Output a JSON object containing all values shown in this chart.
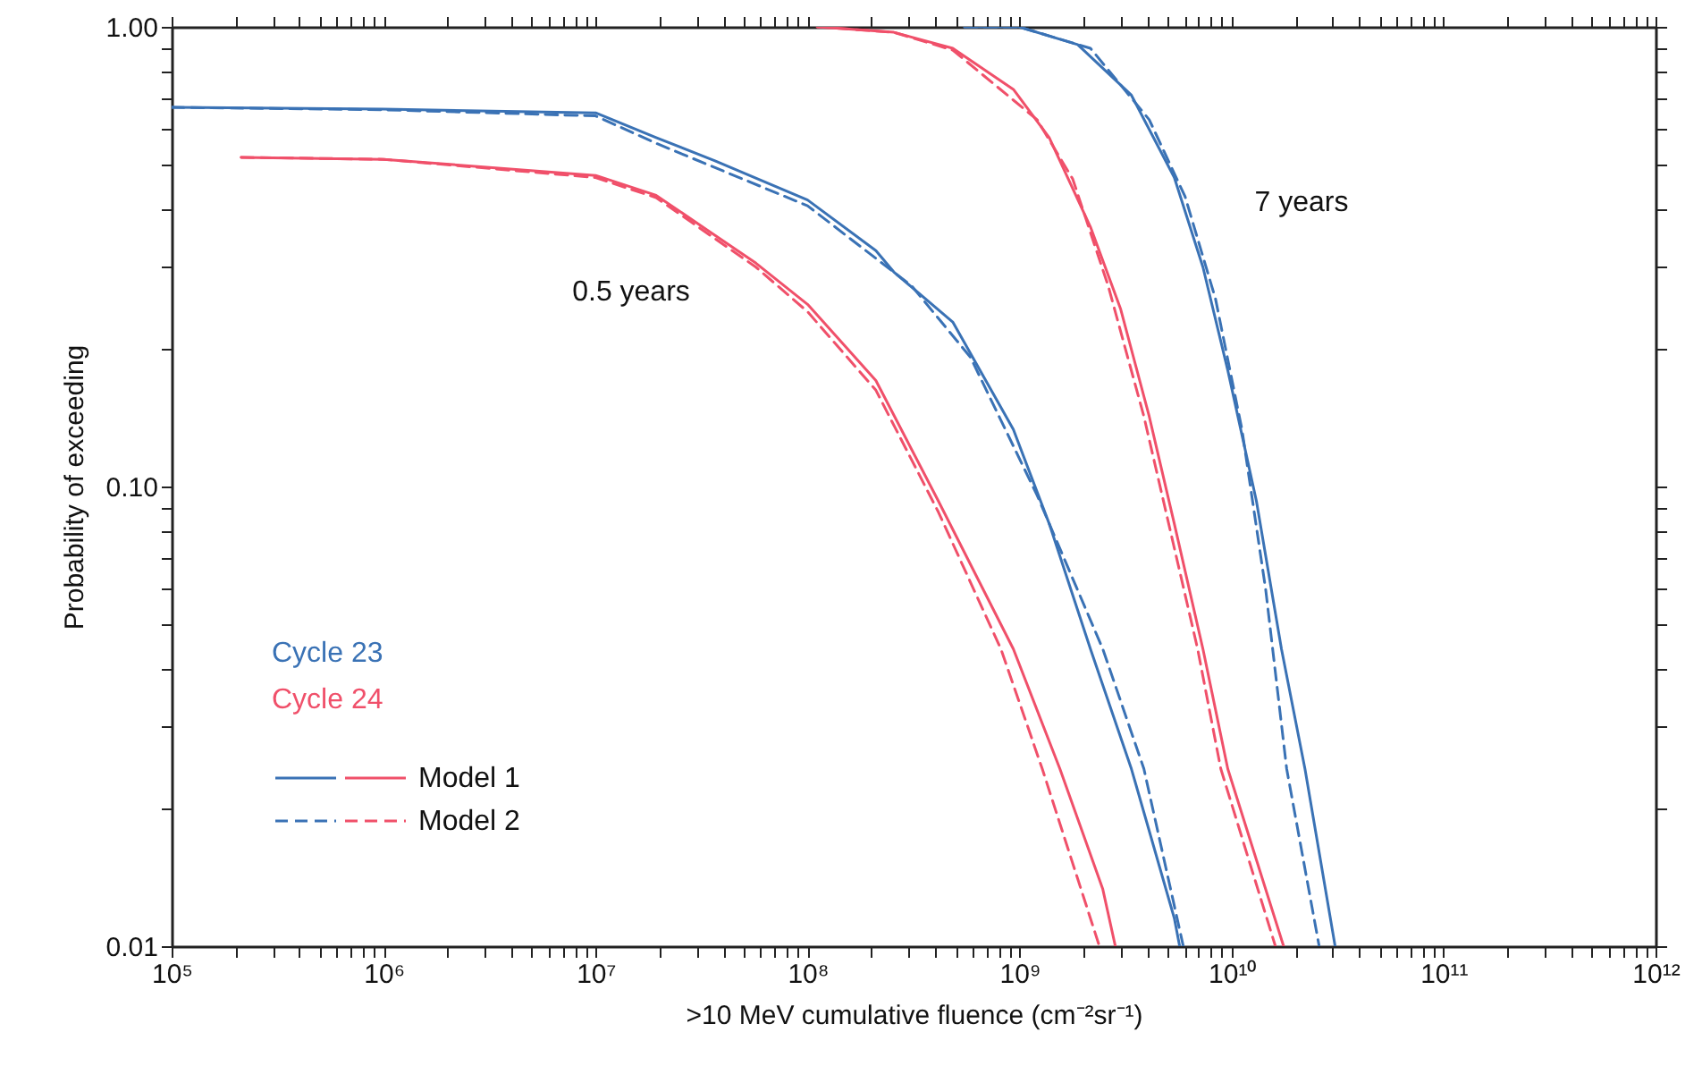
{
  "chart_data": {
    "type": "line",
    "xlabel": ">10 MeV cumulative fluence (cm⁻²sr⁻¹)",
    "ylabel": "Probability of exceeding",
    "xlim": [
      100000,
      1000000000000
    ],
    "ylim": [
      0.01,
      1
    ],
    "log": "xy",
    "grid": false,
    "xticks": [
      {
        "value": 100000,
        "label": "10⁵"
      },
      {
        "value": 200000,
        "label": null
      },
      {
        "value": 300000,
        "label": null
      },
      {
        "value": 400000,
        "label": null
      },
      {
        "value": 500000,
        "label": null
      },
      {
        "value": 600000,
        "label": null
      },
      {
        "value": 700000,
        "label": null
      },
      {
        "value": 800000,
        "label": null
      },
      {
        "value": 900000,
        "label": null
      },
      {
        "value": 1000000,
        "label": "10⁶"
      },
      {
        "value": 2000000,
        "label": null
      },
      {
        "value": 3000000,
        "label": null
      },
      {
        "value": 4000000,
        "label": null
      },
      {
        "value": 5000000,
        "label": null
      },
      {
        "value": 6000000,
        "label": null
      },
      {
        "value": 7000000,
        "label": null
      },
      {
        "value": 8000000,
        "label": null
      },
      {
        "value": 9000000,
        "label": null
      },
      {
        "value": 10000000,
        "label": "10⁷"
      },
      {
        "value": 20000000,
        "label": null
      },
      {
        "value": 30000000,
        "label": null
      },
      {
        "value": 40000000,
        "label": null
      },
      {
        "value": 50000000,
        "label": null
      },
      {
        "value": 60000000,
        "label": null
      },
      {
        "value": 70000000,
        "label": null
      },
      {
        "value": 80000000,
        "label": null
      },
      {
        "value": 90000000,
        "label": null
      },
      {
        "value": 100000000,
        "label": "10⁸"
      },
      {
        "value": 200000000,
        "label": null
      },
      {
        "value": 300000000,
        "label": null
      },
      {
        "value": 400000000,
        "label": null
      },
      {
        "value": 500000000,
        "label": null
      },
      {
        "value": 600000000,
        "label": null
      },
      {
        "value": 700000000,
        "label": null
      },
      {
        "value": 800000000,
        "label": null
      },
      {
        "value": 900000000,
        "label": null
      },
      {
        "value": 1000000000,
        "label": "10⁹"
      },
      {
        "value": 2000000000,
        "label": null
      },
      {
        "value": 3000000000,
        "label": null
      },
      {
        "value": 4000000000,
        "label": null
      },
      {
        "value": 5000000000,
        "label": null
      },
      {
        "value": 6000000000,
        "label": null
      },
      {
        "value": 7000000000,
        "label": null
      },
      {
        "value": 8000000000,
        "label": null
      },
      {
        "value": 9000000000,
        "label": null
      },
      {
        "value": 10000000000,
        "label": "10¹⁰"
      },
      {
        "value": 20000000000,
        "label": null
      },
      {
        "value": 30000000000,
        "label": null
      },
      {
        "value": 40000000000,
        "label": null
      },
      {
        "value": 50000000000,
        "label": null
      },
      {
        "value": 60000000000,
        "label": null
      },
      {
        "value": 70000000000,
        "label": null
      },
      {
        "value": 80000000000,
        "label": null
      },
      {
        "value": 90000000000,
        "label": null
      },
      {
        "value": 100000000000,
        "label": "10¹¹"
      },
      {
        "value": 200000000000,
        "label": null
      },
      {
        "value": 300000000000,
        "label": null
      },
      {
        "value": 400000000000,
        "label": null
      },
      {
        "value": 500000000000,
        "label": null
      },
      {
        "value": 600000000000,
        "label": null
      },
      {
        "value": 700000000000,
        "label": null
      },
      {
        "value": 800000000000,
        "label": null
      },
      {
        "value": 900000000000,
        "label": null
      },
      {
        "value": 1000000000000,
        "label": "10¹²"
      }
    ],
    "yticks": [
      {
        "value": 0.01,
        "label": "0.01"
      },
      {
        "value": 0.02,
        "label": null
      },
      {
        "value": 0.03,
        "label": null
      },
      {
        "value": 0.04,
        "label": null
      },
      {
        "value": 0.05,
        "label": null
      },
      {
        "value": 0.06,
        "label": null
      },
      {
        "value": 0.07,
        "label": null
      },
      {
        "value": 0.08,
        "label": null
      },
      {
        "value": 0.09,
        "label": null
      },
      {
        "value": 0.1,
        "label": "0.10"
      },
      {
        "value": 0.2,
        "label": null
      },
      {
        "value": 0.3,
        "label": null
      },
      {
        "value": 0.4,
        "label": null
      },
      {
        "value": 0.5,
        "label": null
      },
      {
        "value": 0.6,
        "label": null
      },
      {
        "value": 0.7,
        "label": null
      },
      {
        "value": 0.8,
        "label": null
      },
      {
        "value": 0.9,
        "label": null
      },
      {
        "value": 1,
        "label": "1.00"
      }
    ],
    "series": [
      {
        "color": "#3a72b5",
        "line_style": "solid",
        "x": [
          100000,
          1000000,
          10000000,
          19300000,
          36600000,
          100000000,
          210000000,
          255000000,
          484000000,
          935000000,
          1380000000,
          2160000000,
          3370000000,
          5370000000,
          5690000000
        ],
        "values": [
          0.668,
          0.662,
          0.65,
          0.574,
          0.511,
          0.42,
          0.326,
          0.293,
          0.228,
          0.133,
          0.083,
          0.0443,
          0.0243,
          0.0115,
          0.01
        ]
      },
      {
        "color": "#3a72b5",
        "line_style": "dashed",
        "x": [
          100000,
          1000000,
          10000000,
          19300000,
          100000000,
          310000000,
          587000000,
          1210000000,
          2470000000,
          3860000000,
          5920000000
        ],
        "values": [
          0.668,
          0.66,
          0.64,
          0.558,
          0.408,
          0.273,
          0.191,
          0.0957,
          0.0443,
          0.0243,
          0.01
        ]
      },
      {
        "color": "#f0506a",
        "line_style": "solid",
        "x": [
          213000,
          1000000,
          10000000,
          19300000,
          57100000,
          100000000,
          210000000,
          414000000,
          935000000,
          1550000000,
          2470000000,
          2830000000
        ],
        "values": [
          0.52,
          0.515,
          0.475,
          0.43,
          0.306,
          0.249,
          0.17,
          0.093,
          0.0443,
          0.0243,
          0.0133,
          0.01
        ]
      },
      {
        "color": "#f0506a",
        "line_style": "dashed",
        "x": [
          213000,
          1000000,
          10000000,
          19300000,
          57100000,
          100000000,
          210000000,
          414000000,
          817000000,
          1280000000,
          2380000000
        ],
        "values": [
          0.52,
          0.515,
          0.47,
          0.425,
          0.3,
          0.24,
          0.162,
          0.088,
          0.0443,
          0.0243,
          0.01
        ]
      },
      {
        "color": "#3a72b5",
        "line_style": "solid",
        "x": [
          550000000,
          993000000,
          1880000000,
          3370000000,
          5370000000,
          7330000000,
          9600000000,
          13100000000,
          17200000000,
          22200000000,
          30800000000
        ],
        "values": [
          1,
          1,
          0.915,
          0.71,
          0.47,
          0.3,
          0.179,
          0.093,
          0.0443,
          0.0243,
          0.01
        ]
      },
      {
        "color": "#3a72b5",
        "line_style": "dashed",
        "x": [
          550000000,
          993000000,
          2160000000,
          4090000000,
          6040000000,
          8400000000,
          11200000000,
          14500000000,
          18200000000,
          25900000000
        ],
        "values": [
          1,
          1,
          0.898,
          0.628,
          0.427,
          0.256,
          0.133,
          0.0595,
          0.0243,
          0.01
        ]
      },
      {
        "color": "#f0506a",
        "line_style": "solid",
        "x": [
          111000000,
          255000000,
          484000000,
          935000000,
          1380000000,
          2160000000,
          3000000000,
          4090000000,
          5370000000,
          7330000000,
          9600000000,
          17600000000
        ],
        "values": [
          1,
          0.973,
          0.898,
          0.731,
          0.574,
          0.367,
          0.243,
          0.142,
          0.083,
          0.0443,
          0.0243,
          0.01
        ]
      },
      {
        "color": "#f0506a",
        "line_style": "dashed",
        "x": [
          111000000,
          255000000,
          484000000,
          1210000000,
          1780000000,
          2620000000,
          3860000000,
          6920000000,
          8900000000,
          16100000000
        ],
        "values": [
          1,
          0.973,
          0.89,
          0.628,
          0.467,
          0.273,
          0.142,
          0.0443,
          0.0243,
          0.01
        ]
      }
    ],
    "annotations": [
      "0.5 years",
      "7 years",
      "Cycle 23",
      "Cycle 24",
      "Model 1",
      "Model 2"
    ]
  }
}
